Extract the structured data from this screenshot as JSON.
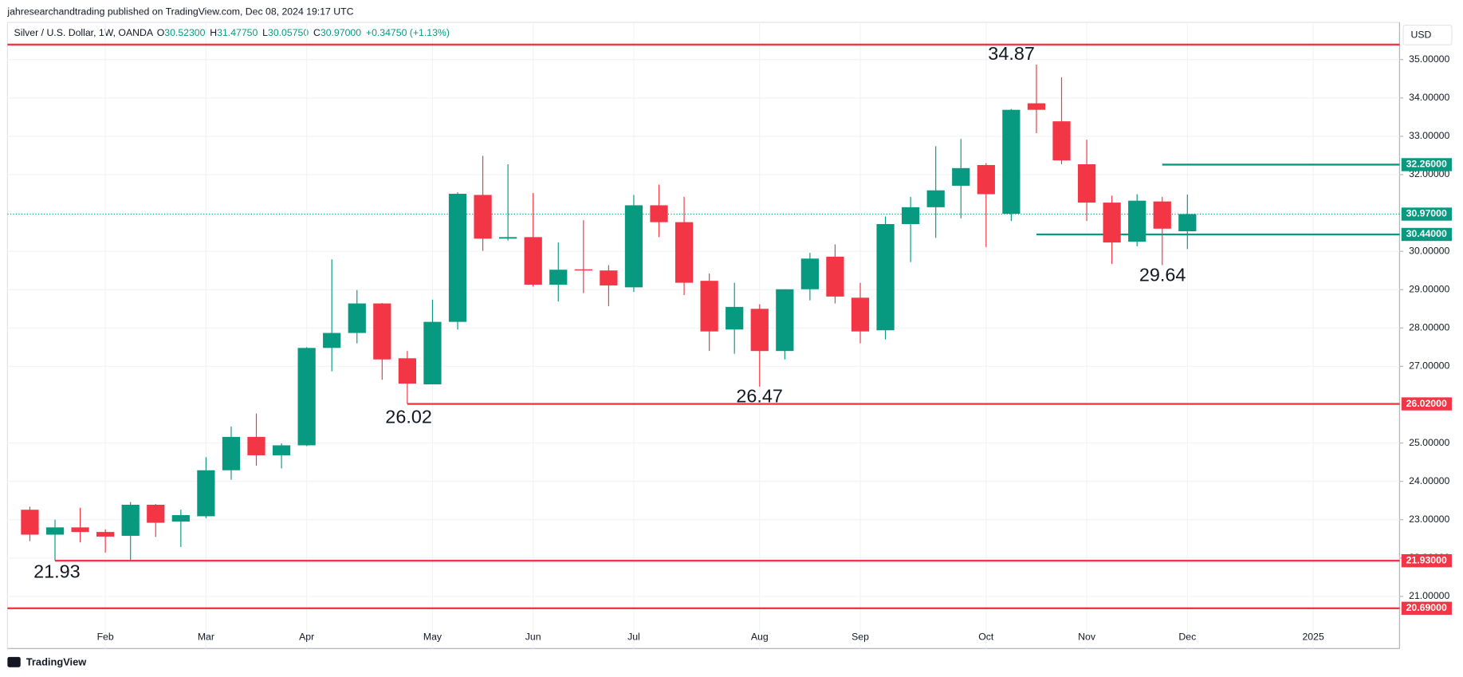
{
  "chart_data": {
    "type": "candlestick",
    "byline": "jahresearchandtrading published on TradingView.com, Dec 08, 2024 19:17 UTC",
    "title": "Silver / U.S. Dollar, 1W, OANDA",
    "ohlc_legend": [
      {
        "key": "O",
        "text": "30.52300"
      },
      {
        "key": "H",
        "text": "31.47750"
      },
      {
        "key": "L",
        "text": "30.05750"
      },
      {
        "key": "C",
        "text": "30.97000"
      }
    ],
    "change": "+0.34750 (+1.13%)",
    "currency": "USD",
    "footer": "TradingView",
    "up_color": "#089981",
    "down_color": "#f23645",
    "categories": [
      null,
      null,
      null,
      "Feb",
      null,
      null,
      null,
      "Mar",
      null,
      null,
      null,
      "Apr",
      null,
      null,
      null,
      null,
      "May",
      null,
      null,
      null,
      "Jun",
      null,
      null,
      null,
      "Jul",
      null,
      null,
      null,
      null,
      "Aug",
      null,
      null,
      null,
      "Sep",
      null,
      null,
      null,
      null,
      "Oct",
      null,
      null,
      null,
      "Nov",
      null,
      null,
      null,
      "Dec",
      null,
      null,
      null,
      null,
      "2025"
    ],
    "open": [
      23.26,
      22.61,
      22.8,
      22.68,
      22.58,
      23.39,
      22.95,
      23.09,
      24.29,
      25.16,
      24.68,
      24.94,
      27.48,
      27.87,
      28.64,
      27.21,
      26.53,
      28.16,
      31.47,
      30.33,
      30.37,
      29.13,
      29.53,
      29.5,
      29.06,
      31.2,
      30.76,
      29.23,
      27.96,
      28.5,
      27.4,
      29.01,
      29.86,
      28.79,
      27.94,
      30.71,
      31.15,
      31.71,
      32.25,
      30.98,
      33.86,
      33.39,
      32.27,
      31.27,
      30.25,
      31.3,
      30.523,
      null,
      null,
      null,
      null,
      null
    ],
    "high": [
      23.34,
      23.0,
      23.31,
      22.75,
      23.46,
      23.41,
      23.26,
      24.63,
      25.43,
      25.77,
      24.99,
      27.5,
      29.79,
      28.99,
      28.65,
      27.4,
      28.74,
      31.54,
      32.49,
      32.27,
      31.52,
      30.23,
      30.81,
      29.64,
      31.47,
      31.74,
      31.42,
      29.42,
      29.18,
      28.62,
      29.01,
      29.96,
      30.18,
      29.18,
      30.91,
      31.42,
      32.74,
      32.93,
      32.3,
      33.71,
      34.87,
      34.54,
      32.91,
      31.45,
      31.49,
      31.42,
      31.4775,
      null,
      null,
      null,
      null,
      null
    ],
    "low": [
      22.44,
      21.93,
      22.41,
      22.14,
      21.93,
      22.55,
      22.29,
      23.04,
      24.04,
      24.41,
      24.34,
      24.92,
      26.87,
      27.6,
      26.65,
      26.02,
      26.53,
      27.96,
      30.01,
      30.28,
      29.08,
      28.69,
      28.91,
      28.57,
      28.94,
      30.37,
      28.86,
      27.4,
      27.33,
      26.47,
      27.18,
      28.72,
      28.64,
      27.6,
      27.7,
      29.72,
      30.35,
      30.86,
      30.11,
      30.79,
      33.08,
      32.27,
      30.79,
      29.67,
      30.13,
      29.64,
      30.0575,
      null,
      null,
      null,
      null,
      null
    ],
    "close": [
      22.61,
      22.8,
      22.68,
      22.56,
      23.39,
      22.92,
      23.12,
      24.29,
      25.16,
      24.68,
      24.94,
      27.48,
      27.87,
      28.64,
      27.18,
      26.55,
      28.16,
      31.5,
      30.33,
      30.37,
      29.13,
      29.52,
      29.5,
      29.11,
      31.2,
      30.76,
      29.18,
      27.91,
      28.55,
      27.4,
      29.01,
      29.81,
      28.82,
      27.91,
      30.71,
      31.15,
      31.59,
      32.17,
      31.49,
      33.69,
      33.69,
      32.37,
      31.27,
      30.23,
      31.32,
      30.59,
      30.97,
      null,
      null,
      null,
      null,
      null
    ],
    "ylim": [
      19.64,
      35.97
    ],
    "yticks": [
      {
        "value": 21,
        "label": "21.00000"
      },
      {
        "value": 22,
        "label": "22.00000"
      },
      {
        "value": 23,
        "label": "23.00000"
      },
      {
        "value": 24,
        "label": "24.00000"
      },
      {
        "value": 25,
        "label": "25.00000"
      },
      {
        "value": 27,
        "label": "27.00000"
      },
      {
        "value": 28,
        "label": "28.00000"
      },
      {
        "value": 29,
        "label": "29.00000"
      },
      {
        "value": 30,
        "label": "30.00000"
      },
      {
        "value": 32,
        "label": "32.00000"
      },
      {
        "value": 33,
        "label": "33.00000"
      },
      {
        "value": 34,
        "label": "34.00000"
      },
      {
        "value": 35,
        "label": "35.00000"
      }
    ],
    "grid": true,
    "levels": [
      {
        "value": 35.39,
        "color": "#f23645"
      },
      {
        "value": 32.26,
        "label": "32.26000",
        "color": "#089981"
      },
      {
        "value": 30.44,
        "label": "30.44000",
        "color": "#089981"
      },
      {
        "value": 26.02,
        "label": "26.02000",
        "color": "#f23645"
      },
      {
        "value": 21.93,
        "label": "21.93000",
        "color": "#f23645"
      },
      {
        "value": 20.69,
        "label": "20.69000",
        "color": "#f23645"
      }
    ],
    "last_price": {
      "value": 30.97,
      "label": "30.97000",
      "color": "#089981"
    },
    "annotations": [
      {
        "text": "34.87"
      },
      {
        "text": "26.02"
      },
      {
        "text": "26.47"
      },
      {
        "text": "29.64"
      },
      {
        "text": "21.93"
      }
    ]
  }
}
